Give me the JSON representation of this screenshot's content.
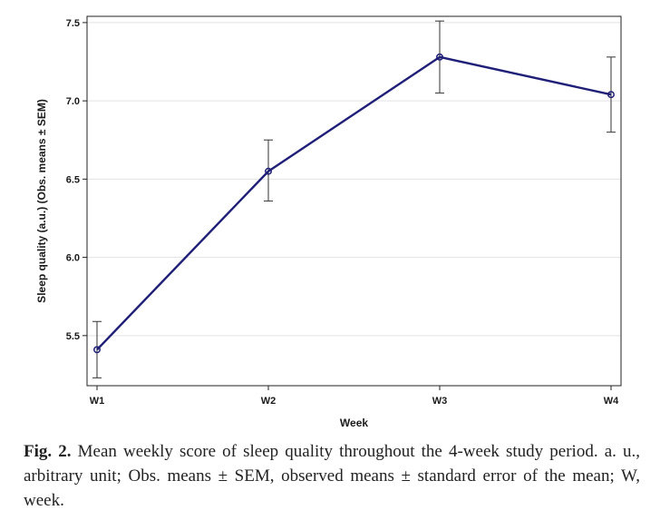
{
  "chart_data": {
    "type": "line",
    "categories": [
      "W1",
      "W2",
      "W3",
      "W4"
    ],
    "series": [
      {
        "values": [
          5.41,
          6.55,
          7.28,
          7.04
        ],
        "error_upper": [
          5.59,
          6.75,
          7.51,
          7.28
        ],
        "error_lower": [
          5.23,
          6.36,
          7.05,
          6.8
        ],
        "color": "#1f1f78"
      }
    ],
    "xlabel": "Week",
    "ylabel": "Sleep quality (a.u.) (Obs. means ± SEM)",
    "yticks": [
      "5.5",
      "6.0",
      "6.5",
      "7.0",
      "7.5"
    ],
    "ylim": [
      5.18,
      7.54
    ],
    "grid": true,
    "gridline_color": "#e3e3e3",
    "axis_color": "#222222"
  },
  "caption": {
    "label": "Fig. 2.",
    "text": "Mean weekly score of sleep quality throughout the 4-week study period. a. u., arbitrary unit; Obs. means ± SEM, observed means ± standard error of the mean; W, week."
  }
}
